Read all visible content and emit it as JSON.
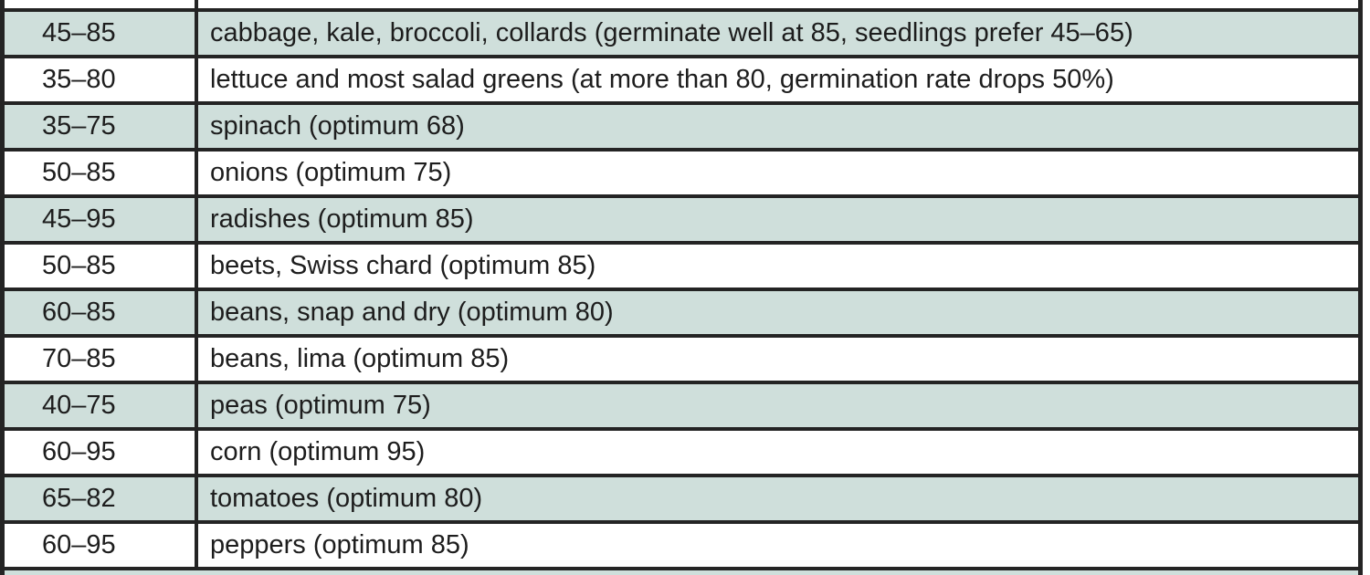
{
  "table": {
    "rows": [
      {
        "range": "45–85",
        "crops": "cabbage, kale, broccoli, collards (germinate well at 85, seedlings prefer 45–65)"
      },
      {
        "range": "35–80",
        "crops": "lettuce and most salad greens (at more than 80, germination rate drops 50%)"
      },
      {
        "range": "35–75",
        "crops": "spinach (optimum 68)"
      },
      {
        "range": "50–85",
        "crops": "onions (optimum 75)"
      },
      {
        "range": "45–95",
        "crops": "radishes (optimum 85)"
      },
      {
        "range": "50–85",
        "crops": "beets, Swiss chard (optimum 85)"
      },
      {
        "range": "60–85",
        "crops": "beans, snap and dry (optimum 80)"
      },
      {
        "range": "70–85",
        "crops": "beans, lima (optimum 85)"
      },
      {
        "range": "40–75",
        "crops": "peas (optimum 75)"
      },
      {
        "range": "60–95",
        "crops": "corn (optimum 95)"
      },
      {
        "range": "65–82",
        "crops": "tomatoes (optimum 80)"
      },
      {
        "range": "60–95",
        "crops": "peppers (optimum 85)"
      }
    ],
    "colors": {
      "shaded_row_bg": "#cfdfdb",
      "plain_row_bg": "#ffffff",
      "border": "#242424",
      "text": "#1d1d1d"
    }
  }
}
